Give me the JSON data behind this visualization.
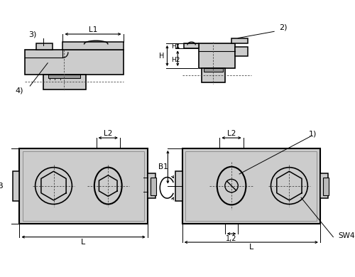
{
  "bg": "#ffffff",
  "fc": "#cccccc",
  "ec": "#000000",
  "lc": "#000000",
  "dc": "#444444",
  "lw": 1.0,
  "tlw": 0.7,
  "labels": {
    "L1": "L1",
    "L2": "L2",
    "L": "L",
    "B": "B",
    "H": "H",
    "H1": "H1",
    "H2": "H2",
    "B1": "B1",
    "n1": "1)",
    "n2": "2)",
    "n3": "3)",
    "n4": "4)",
    "n12": "1,2",
    "SW4": "SW4"
  }
}
